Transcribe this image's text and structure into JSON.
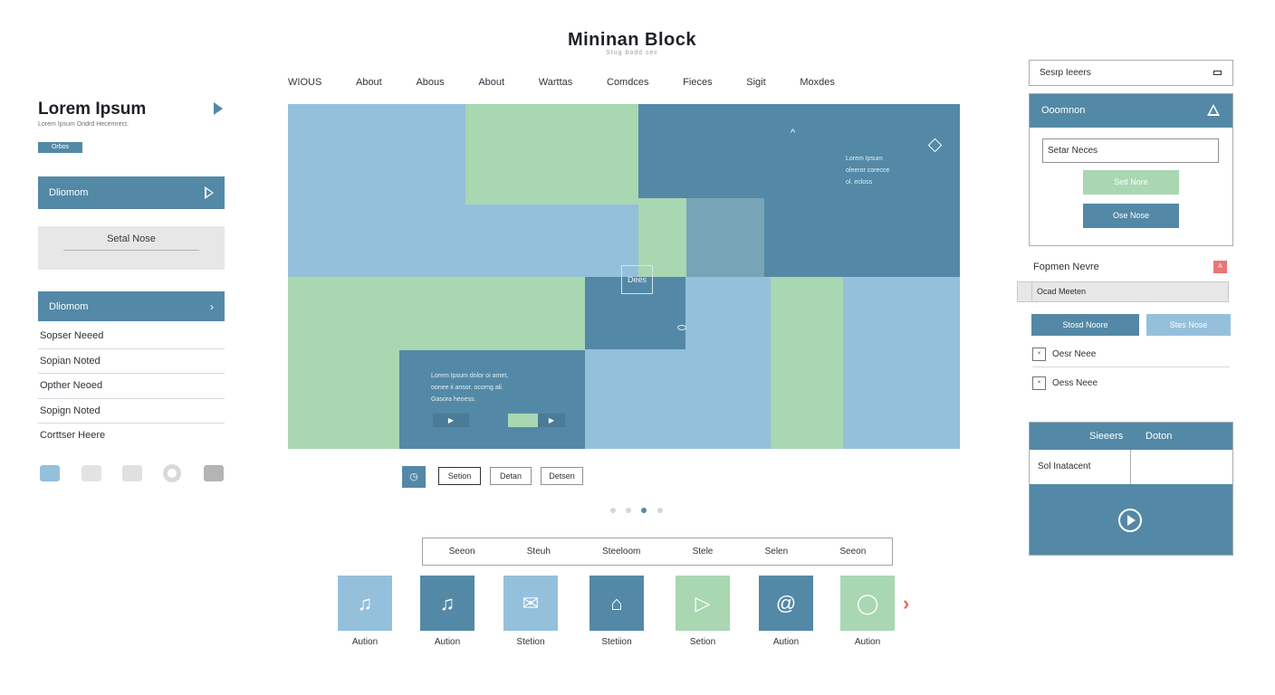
{
  "header": {
    "title": "Mininan Block",
    "subtitle": "Stug bodd sec"
  },
  "nav": {
    "items": [
      "WIOUS",
      "About",
      "Abous",
      "About",
      "Warttas",
      "Comdces",
      "Fieces",
      "Sigit",
      "Moxdes"
    ]
  },
  "left": {
    "title": "Lorem Ipsum",
    "subtitle": "Lorem Ipsum Ondrd Hecemrect.",
    "badge": "Orbos",
    "panel1": "Dliomom",
    "grey_label": "Setal Nose",
    "panel2": "Dliomom",
    "list": [
      "Sopser Neeed",
      "Sopian Noted",
      "Opther Neoed",
      "Sopign Noted",
      "Corttser Heere"
    ]
  },
  "hero": {
    "top_text": [
      "Lorem Ipsum",
      "oleeror corecce",
      "ol. ecloss"
    ],
    "center_label": "Dees",
    "bottom_text": [
      "Lorem Ipsum dolor oi amet,",
      "oonee ii ansor. ocorng ali.",
      "Gasora heoess."
    ]
  },
  "controls": {
    "buttons": [
      "Setion",
      "Detan",
      "Detsen"
    ],
    "active_dot": 2
  },
  "tabs": [
    "Seeon",
    "Steuh",
    "Steeloom",
    "Stele",
    "Selen",
    "Seeon"
  ],
  "tiles": [
    {
      "icon": "music-note-icon",
      "glyph": "♫",
      "label": "Aution",
      "color": "#95c0db"
    },
    {
      "icon": "music-note-icon",
      "glyph": "♫",
      "label": "Aution",
      "color": "#5389a6"
    },
    {
      "icon": "message-icon",
      "glyph": "✉",
      "label": "Stetion",
      "color": "#95c0db"
    },
    {
      "icon": "home-icon",
      "glyph": "⌂",
      "label": "Stetiion",
      "color": "#5389a6"
    },
    {
      "icon": "play-icon",
      "glyph": "▷",
      "label": "Setion",
      "color": "#a8d7b2"
    },
    {
      "icon": "at-sign-icon",
      "glyph": "@",
      "label": "Aution",
      "color": "#5389a6"
    },
    {
      "icon": "circle-icon",
      "glyph": "◯",
      "label": "Aution",
      "color": "#a8d7b2"
    }
  ],
  "right": {
    "search_placeholder": "Sesrp Ieeers",
    "card": {
      "title": "Ooomnon",
      "input_value": "Setar Neces",
      "btn1": "Setl Nore",
      "btn2": "Ose Nose"
    },
    "label": "Fopmen Nevre",
    "alert": "A",
    "bar_text": "Ocad Meeten",
    "btn_a": "Stosd Noore",
    "btn_b": "Stes Nose",
    "checks": [
      {
        "mark": "×",
        "label": "Oesr Neee"
      },
      {
        "mark": "×",
        "label": "Oess Neee"
      }
    ],
    "table": {
      "head": [
        "Sieeers",
        "Doton"
      ],
      "cell": "Sol Inatacent"
    }
  },
  "colors": {
    "primary": "#5389a6",
    "light_blue": "#95c0db",
    "green": "#a8d7b2",
    "alert": "#ea7575"
  }
}
